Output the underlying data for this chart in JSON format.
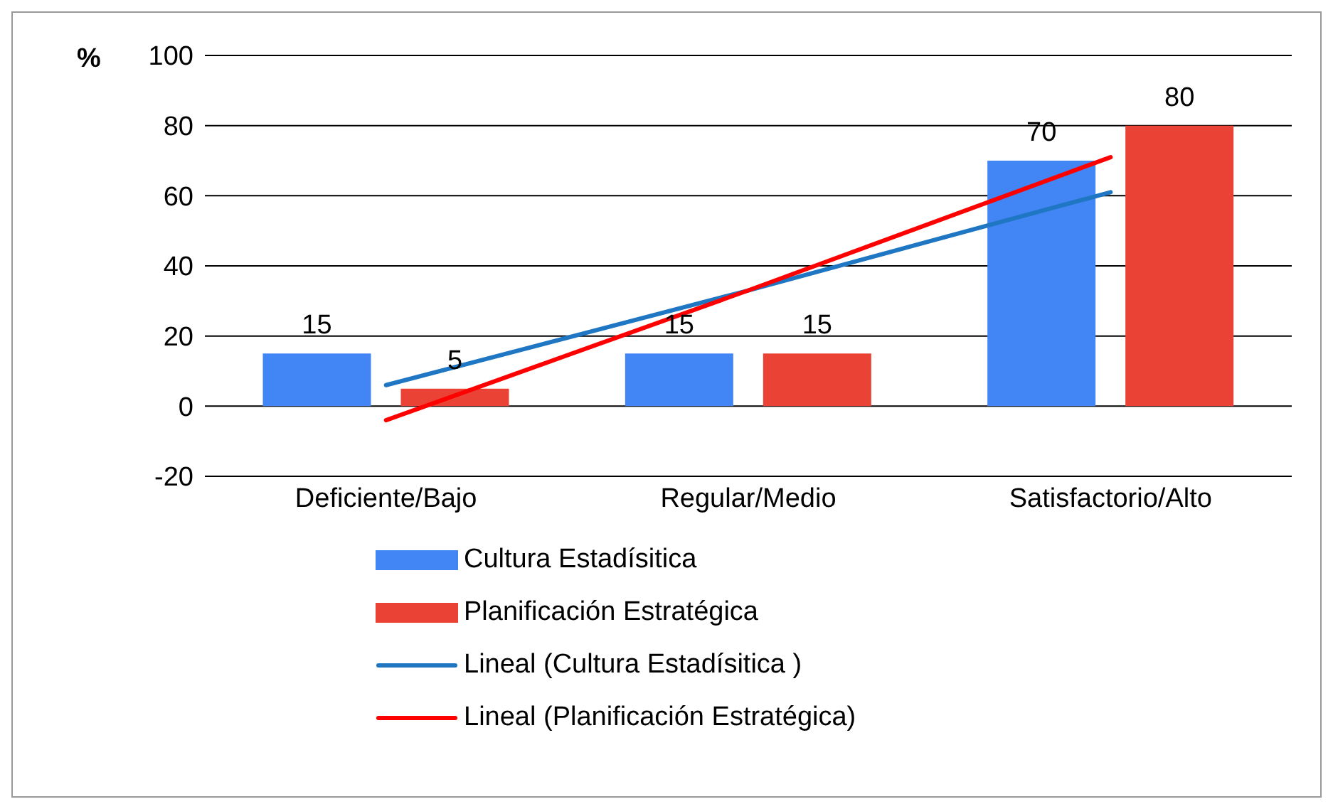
{
  "chart_data": {
    "type": "bar",
    "ylabel": "%",
    "categories": [
      "Deficiente/Bajo",
      "Regular/Medio",
      "Satisfactorio/Alto"
    ],
    "series": [
      {
        "name": "Cultura Estadísitica",
        "color": "#4285f4",
        "values": [
          15,
          15,
          70
        ],
        "value_labels": [
          "15",
          "15",
          "70"
        ]
      },
      {
        "name": "Planificación Estratégica",
        "color": "#ea4335",
        "values": [
          5,
          15,
          80
        ],
        "value_labels": [
          "5",
          "15",
          "80"
        ]
      },
      {
        "name": "Lineal (Cultura Estadísitica )",
        "type": "line",
        "color": "#1f77c4",
        "values": [
          6,
          33,
          61
        ]
      },
      {
        "name": "Lineal (Planificación Estratégica)",
        "type": "line",
        "color": "#ff0000",
        "values": [
          -4,
          33,
          71
        ]
      }
    ],
    "ylim": [
      -20,
      100
    ],
    "yticks": [
      -20,
      0,
      20,
      40,
      60,
      80,
      100
    ],
    "grid": "y",
    "legend": "bottom",
    "line_style": "solid",
    "marker": "none"
  }
}
